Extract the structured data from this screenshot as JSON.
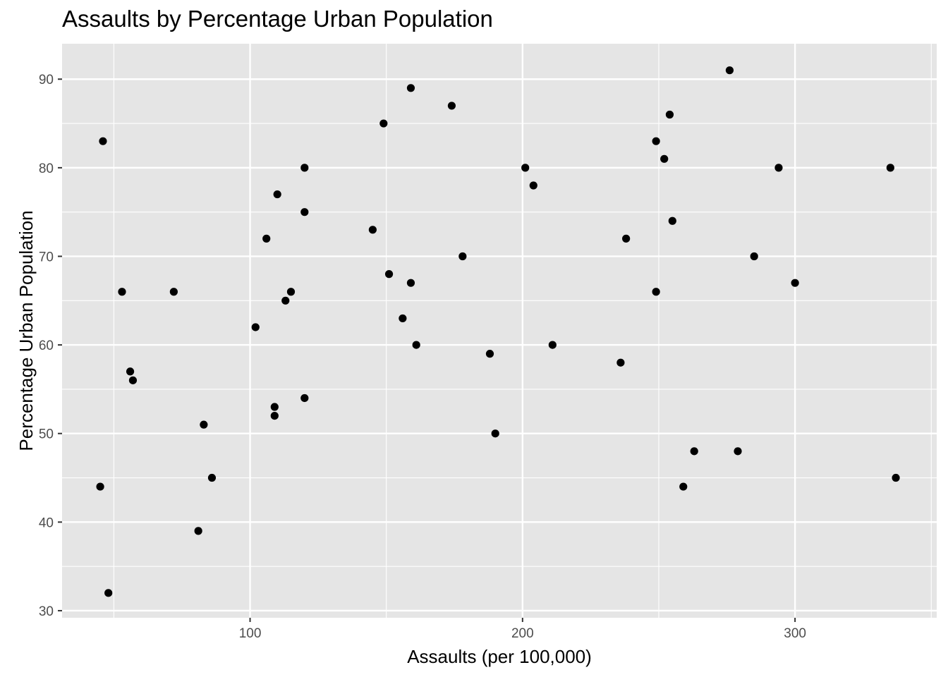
{
  "chart_data": {
    "type": "scatter",
    "title": "Assaults by Percentage Urban Population",
    "xlabel": "Assaults (per 100,000)",
    "ylabel": "Percentage Urban Population",
    "xlim": [
      31,
      352
    ],
    "ylim": [
      29.2,
      94.0
    ],
    "x_ticks": [
      100,
      200,
      300
    ],
    "y_ticks": [
      30,
      40,
      50,
      60,
      70,
      80,
      90
    ],
    "grid": true,
    "background": "#e5e5e5",
    "grid_color": "#ffffff",
    "point_color": "#000000",
    "points": [
      {
        "x": 236,
        "y": 58
      },
      {
        "x": 263,
        "y": 48
      },
      {
        "x": 294,
        "y": 80
      },
      {
        "x": 190,
        "y": 50
      },
      {
        "x": 276,
        "y": 91
      },
      {
        "x": 204,
        "y": 78
      },
      {
        "x": 110,
        "y": 77
      },
      {
        "x": 238,
        "y": 72
      },
      {
        "x": 335,
        "y": 80
      },
      {
        "x": 211,
        "y": 60
      },
      {
        "x": 46,
        "y": 83
      },
      {
        "x": 120,
        "y": 54
      },
      {
        "x": 249,
        "y": 83
      },
      {
        "x": 113,
        "y": 65
      },
      {
        "x": 56,
        "y": 57
      },
      {
        "x": 115,
        "y": 66
      },
      {
        "x": 109,
        "y": 52
      },
      {
        "x": 249,
        "y": 66
      },
      {
        "x": 83,
        "y": 51
      },
      {
        "x": 300,
        "y": 67
      },
      {
        "x": 149,
        "y": 85
      },
      {
        "x": 255,
        "y": 74
      },
      {
        "x": 72,
        "y": 66
      },
      {
        "x": 259,
        "y": 44
      },
      {
        "x": 178,
        "y": 70
      },
      {
        "x": 109,
        "y": 53
      },
      {
        "x": 102,
        "y": 62
      },
      {
        "x": 252,
        "y": 81
      },
      {
        "x": 57,
        "y": 56
      },
      {
        "x": 159,
        "y": 89
      },
      {
        "x": 285,
        "y": 70
      },
      {
        "x": 254,
        "y": 86
      },
      {
        "x": 337,
        "y": 45
      },
      {
        "x": 45,
        "y": 44
      },
      {
        "x": 120,
        "y": 75
      },
      {
        "x": 151,
        "y": 68
      },
      {
        "x": 159,
        "y": 67
      },
      {
        "x": 106,
        "y": 72
      },
      {
        "x": 174,
        "y": 87
      },
      {
        "x": 279,
        "y": 48
      },
      {
        "x": 86,
        "y": 45
      },
      {
        "x": 188,
        "y": 59
      },
      {
        "x": 201,
        "y": 80
      },
      {
        "x": 120,
        "y": 80
      },
      {
        "x": 48,
        "y": 32
      },
      {
        "x": 156,
        "y": 63
      },
      {
        "x": 145,
        "y": 73
      },
      {
        "x": 81,
        "y": 39
      },
      {
        "x": 53,
        "y": 66
      },
      {
        "x": 161,
        "y": 60
      }
    ]
  }
}
